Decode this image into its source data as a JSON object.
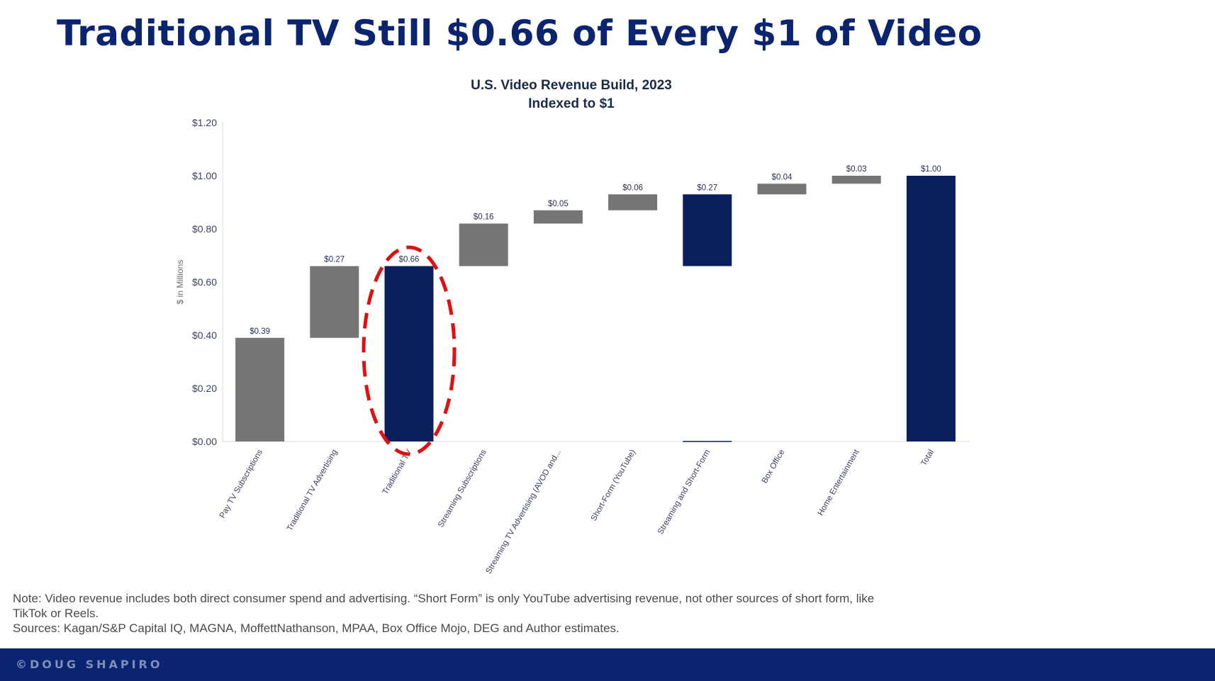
{
  "slide": {
    "title": "Traditional TV Still $0.66 of Every $1 of Video",
    "note": "Note: Video revenue includes both direct consumer spend and advertising. “Short Form” is only YouTube advertising revenue, not other sources of short form, like TikTok or Reels.",
    "sources": "Sources:  Kagan/S&P Capital IQ, MAGNA, MoffettNathanson, MPAA, Box Office Mojo, DEG and Author estimates.",
    "footer": "©DOUG SHAPIRO"
  },
  "colors": {
    "title": "#0b2470",
    "bar_increment": "#757575",
    "bar_total": "#0a1f5c",
    "highlight": "#e01010",
    "footer": "#0a2470"
  },
  "chart_data": {
    "type": "bar",
    "subtype": "waterfall",
    "title": "U.S. Video Revenue Build, 2023",
    "subtitle": "Indexed to $1",
    "ylabel": "$ in Millions",
    "xlabel": "",
    "ylim": [
      0,
      1.2
    ],
    "yticks": [
      "$0.00",
      "$0.20",
      "$0.40",
      "$0.60",
      "$0.80",
      "$1.00",
      "$1.20"
    ],
    "grid": false,
    "categories": [
      "Pay TV Subscriptions",
      "Traditional TV Advertising",
      "Traditional TV",
      "Streaming Subscriptions",
      "Streaming TV Advertising (AVOD and...",
      "Short-Form (YouTube)",
      "Streaming and Short-Form",
      "Box Office",
      "Home Entertainment",
      "Total"
    ],
    "bars": [
      {
        "base": 0.0,
        "value": 0.39,
        "label": "$0.39",
        "kind": "increment"
      },
      {
        "base": 0.39,
        "value": 0.27,
        "label": "$0.27",
        "kind": "increment"
      },
      {
        "base": 0.0,
        "value": 0.66,
        "label": "$0.66",
        "kind": "total"
      },
      {
        "base": 0.66,
        "value": 0.16,
        "label": "$0.16",
        "kind": "increment"
      },
      {
        "base": 0.82,
        "value": 0.05,
        "label": "$0.05",
        "kind": "increment"
      },
      {
        "base": 0.87,
        "value": 0.06,
        "label": "$0.06",
        "kind": "increment"
      },
      {
        "base": 0.66,
        "value": 0.27,
        "label": "$0.27",
        "kind": "total"
      },
      {
        "base": 0.93,
        "value": 0.04,
        "label": "$0.04",
        "kind": "increment"
      },
      {
        "base": 0.97,
        "value": 0.03,
        "label": "$0.03",
        "kind": "increment"
      },
      {
        "base": 0.0,
        "value": 1.0,
        "label": "$1.00",
        "kind": "total"
      }
    ],
    "highlighted_category": "Traditional TV"
  }
}
